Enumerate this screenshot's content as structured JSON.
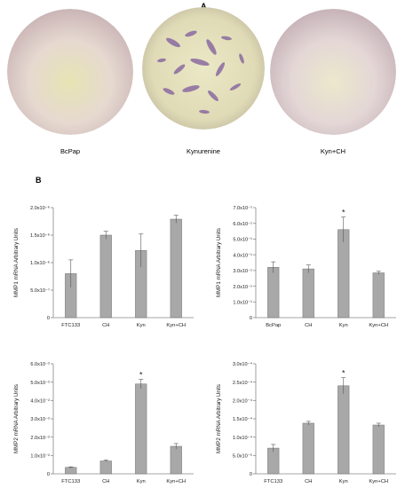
{
  "panel_a": {
    "label": "A",
    "photos": [
      {
        "caption": "BcPap",
        "tint": "#e4d6cf",
        "center": "#e6e3b9"
      },
      {
        "caption": "Kynurenine",
        "tint": "#e2dcb8",
        "center": "#e9e6c2"
      },
      {
        "caption": "Kyn+CH",
        "tint": "#e4d6d6",
        "center": "#ece8d0"
      }
    ]
  },
  "panel_b": {
    "label": "B"
  },
  "chart_data": [
    {
      "type": "bar",
      "categories": [
        "FTC133",
        "CH",
        "Kyn",
        "Kyn+CH"
      ],
      "values": [
        8e-07,
        1.5e-06,
        1.22e-06,
        1.79e-06
      ],
      "errors": [
        2.5e-07,
        7e-08,
        3e-07,
        7e-08
      ],
      "ylabel": "MMP1 mRNA Arbitrary Units",
      "ylim": [
        0,
        2e-06
      ],
      "ticks": [
        0,
        5e-07,
        1e-06,
        1.5e-06,
        2e-06
      ],
      "tick_labels": [
        "0",
        "5.0x10⁻⁷",
        "1.0x10⁻⁶",
        "1.5x10⁻⁶",
        "2.0x10⁻⁶"
      ],
      "annotations": []
    },
    {
      "type": "bar",
      "categories": [
        "BcPap",
        "CH",
        "Kyn",
        "Kyn+CH"
      ],
      "values": [
        0.32,
        0.31,
        0.56,
        0.285
      ],
      "errors": [
        0.035,
        0.025,
        0.08,
        0.01
      ],
      "ylabel": "MMP1 mRNA Arbitrary Units",
      "ylim": [
        0,
        0.7
      ],
      "ticks": [
        0,
        0.1,
        0.2,
        0.3,
        0.4,
        0.5,
        0.6,
        0.7
      ],
      "tick_labels": [
        "0",
        "1.0x10⁻¹",
        "2.0x10⁻¹",
        "3.0x10⁻¹",
        "4.0x10⁻¹",
        "5.0x10⁻¹",
        "6.0x10⁻¹",
        "7.0x10⁻¹"
      ],
      "annotations": [
        {
          "category": "Kyn",
          "text": "*"
        }
      ]
    },
    {
      "type": "bar",
      "categories": [
        "FTC133",
        "CH",
        "Kyn",
        "Kyn+CH"
      ],
      "values": [
        0.0035,
        0.007,
        0.049,
        0.015
      ],
      "errors": [
        0.0003,
        0.0005,
        0.0025,
        0.0015
      ],
      "ylabel": "MMP2 mRNA Arbitrary Units",
      "ylim": [
        0,
        0.06
      ],
      "ticks": [
        0,
        0.01,
        0.02,
        0.03,
        0.04,
        0.05,
        0.06
      ],
      "tick_labels": [
        "0",
        "1.0x10⁻²",
        "2.0x10⁻²",
        "3.0x10⁻²",
        "4.0x10⁻²",
        "5.0x10⁻²",
        "6.0x10⁻²"
      ],
      "annotations": [
        {
          "category": "Kyn",
          "text": "*"
        }
      ]
    },
    {
      "type": "bar",
      "categories": [
        "FTC133",
        "CH",
        "Kyn",
        "Kyn+CH"
      ],
      "values": [
        7e-05,
        0.000138,
        0.00024,
        0.000133
      ],
      "errors": [
        1e-05,
        5e-06,
        2.2e-05,
        5e-06
      ],
      "ylabel": "MMP2 mRNA Arbitrary Units",
      "ylim": [
        0,
        0.0003
      ],
      "ticks": [
        0,
        5e-05,
        0.0001,
        0.00015,
        0.0002,
        0.00025,
        0.0003
      ],
      "tick_labels": [
        "0",
        "5.0x10⁻⁵",
        "1.0x10⁻⁴",
        "1.5x10⁻⁴",
        "2.0x10⁻⁴",
        "2.5x10⁻⁴",
        "3.0x10⁻⁴"
      ],
      "annotations": [
        {
          "category": "Kyn",
          "text": "*"
        }
      ]
    }
  ]
}
